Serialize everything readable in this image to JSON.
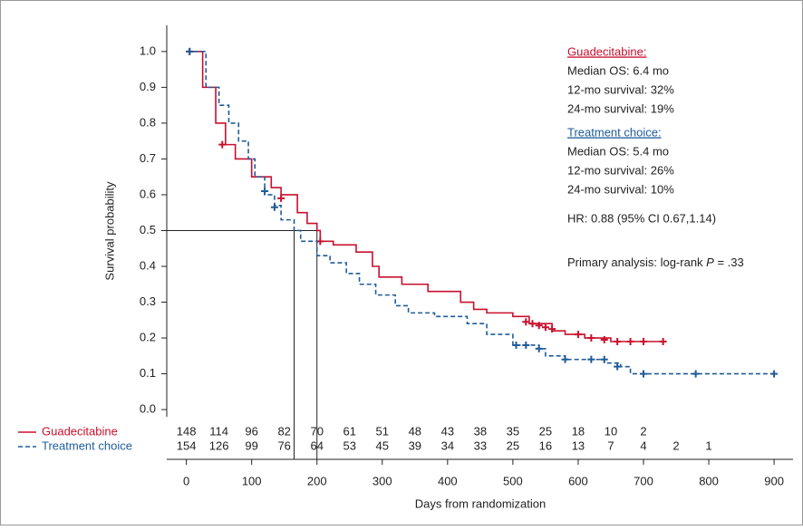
{
  "chart_data": {
    "type": "survival",
    "x_label": "Days from randomization",
    "y_label": "Survival probability",
    "xlim": [
      -30,
      929
    ],
    "ylim": [
      -0.02,
      1.073
    ],
    "xticks": [
      0,
      100,
      200,
      300,
      400,
      500,
      600,
      700,
      800,
      900
    ],
    "yticks": [
      {
        "value": 0,
        "label": "0.0"
      },
      {
        "value": 0.1,
        "label": "0.1"
      },
      {
        "value": 0.2,
        "label": "0.2"
      },
      {
        "value": 0.3,
        "label": "0.3"
      },
      {
        "value": 0.4,
        "label": "0.4"
      },
      {
        "value": 0.5,
        "label": "0.5"
      },
      {
        "value": 0.6,
        "label": "0.6"
      },
      {
        "value": 0.7,
        "label": "0.7"
      },
      {
        "value": 0.8,
        "label": "0.8"
      },
      {
        "value": 0.9,
        "label": "0.9"
      },
      {
        "value": 1,
        "label": "1.0"
      }
    ],
    "median_lines": {
      "y": 0.5,
      "x": [
        165,
        200
      ]
    },
    "at_risk_days": [
      0,
      50,
      100,
      150,
      200,
      250,
      300,
      350,
      400,
      450,
      500,
      550,
      600,
      650,
      700,
      750,
      800,
      850
    ],
    "series": [
      {
        "name": "Guadecitabine",
        "color": "#c8102e",
        "dash": false,
        "x": [
          0,
          25,
          45,
          60,
          75,
          100,
          130,
          145,
          170,
          185,
          200,
          205,
          225,
          260,
          285,
          295,
          330,
          370,
          420,
          440,
          460,
          500,
          525,
          560,
          580,
          610,
          650,
          735
        ],
        "values": [
          1.0,
          0.9,
          0.8,
          0.74,
          0.7,
          0.65,
          0.62,
          0.6,
          0.55,
          0.52,
          0.5,
          0.47,
          0.46,
          0.44,
          0.4,
          0.37,
          0.35,
          0.33,
          0.3,
          0.28,
          0.27,
          0.26,
          0.24,
          0.22,
          0.21,
          0.2,
          0.19,
          0.19
        ],
        "censored_x": [
          5,
          55,
          145,
          205,
          520,
          530,
          540,
          550,
          560,
          600,
          620,
          640,
          660,
          680,
          700,
          730
        ],
        "censored_values": [
          1.0,
          0.74,
          0.59,
          0.47,
          0.245,
          0.24,
          0.235,
          0.23,
          0.225,
          0.21,
          0.2,
          0.195,
          0.19,
          0.19,
          0.19,
          0.19
        ],
        "at_risk": [
          148,
          114,
          96,
          82,
          70,
          61,
          51,
          48,
          43,
          38,
          35,
          25,
          18,
          10,
          2
        ]
      },
      {
        "name": "Treatment choice",
        "color": "#1f5c99",
        "dash": true,
        "x": [
          0,
          30,
          50,
          65,
          80,
          95,
          105,
          120,
          135,
          145,
          165,
          175,
          200,
          220,
          245,
          265,
          290,
          320,
          340,
          380,
          430,
          460,
          500,
          540,
          550,
          580,
          640,
          665,
          680,
          900
        ],
        "values": [
          1.0,
          0.9,
          0.85,
          0.8,
          0.75,
          0.7,
          0.65,
          0.6,
          0.57,
          0.53,
          0.5,
          0.47,
          0.43,
          0.41,
          0.38,
          0.35,
          0.32,
          0.29,
          0.27,
          0.26,
          0.24,
          0.21,
          0.18,
          0.17,
          0.15,
          0.14,
          0.13,
          0.12,
          0.1,
          0.1
        ],
        "censored_x": [
          5,
          120,
          135,
          505,
          520,
          540,
          580,
          620,
          640,
          660,
          700,
          780,
          900
        ],
        "censored_values": [
          1.0,
          0.61,
          0.565,
          0.18,
          0.18,
          0.17,
          0.14,
          0.14,
          0.14,
          0.12,
          0.1,
          0.1,
          0.1
        ],
        "at_risk": [
          154,
          126,
          99,
          76,
          64,
          53,
          45,
          39,
          34,
          33,
          25,
          16,
          13,
          7,
          4,
          2,
          1
        ]
      }
    ],
    "annotations": {
      "guadecitabine_header": "Guadecitabine:",
      "guadecitabine_lines": [
        "Median OS: 6.4 mo",
        "12-mo survival: 32%",
        "24-mo survival: 19%"
      ],
      "treatment_header": "Treatment choice:",
      "treatment_lines": [
        "Median OS: 5.4 mo",
        "12-mo survival: 26%",
        "24-mo survival: 10%"
      ],
      "hr": "HR: 0.88 (95% CI 0.67,1.14)",
      "primary_prefix": "Primary analysis: log-rank ",
      "primary_p": "P",
      "primary_suffix": " = .33"
    }
  }
}
